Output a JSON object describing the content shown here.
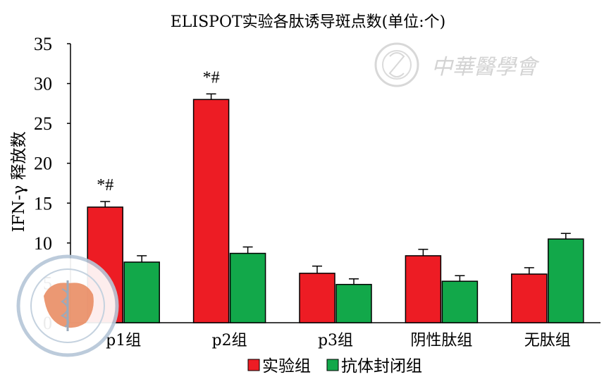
{
  "chart_data": {
    "type": "bar",
    "title": "ELISPOT实验各肽诱导斑点数(单位:个)",
    "ylabel": "IFN-γ 释放数",
    "xlabel": "",
    "ylim": [
      0,
      35
    ],
    "yticks": [
      0,
      5,
      10,
      15,
      20,
      25,
      30,
      35
    ],
    "categories": [
      "p1组",
      "p2组",
      "p3组",
      "阴性肽组",
      "无肽组"
    ],
    "series": [
      {
        "name": "实验组",
        "color": "#ed1c24",
        "values": [
          14.5,
          28.0,
          6.2,
          8.4,
          6.1
        ],
        "errors": [
          0.7,
          0.7,
          0.9,
          0.8,
          0.8
        ]
      },
      {
        "name": "抗体封闭组",
        "color": "#12a84a",
        "values": [
          7.6,
          8.7,
          4.8,
          5.2,
          10.5
        ],
        "errors": [
          0.8,
          0.8,
          0.7,
          0.7,
          0.7
        ]
      }
    ],
    "annotations": [
      {
        "category": "p1组",
        "series": "实验组",
        "text": "*#"
      },
      {
        "category": "p2组",
        "series": "实验组",
        "text": "*#"
      }
    ],
    "legend_position": "bottom-center",
    "grid": false
  },
  "watermark": {
    "text": "中華醫學會"
  }
}
